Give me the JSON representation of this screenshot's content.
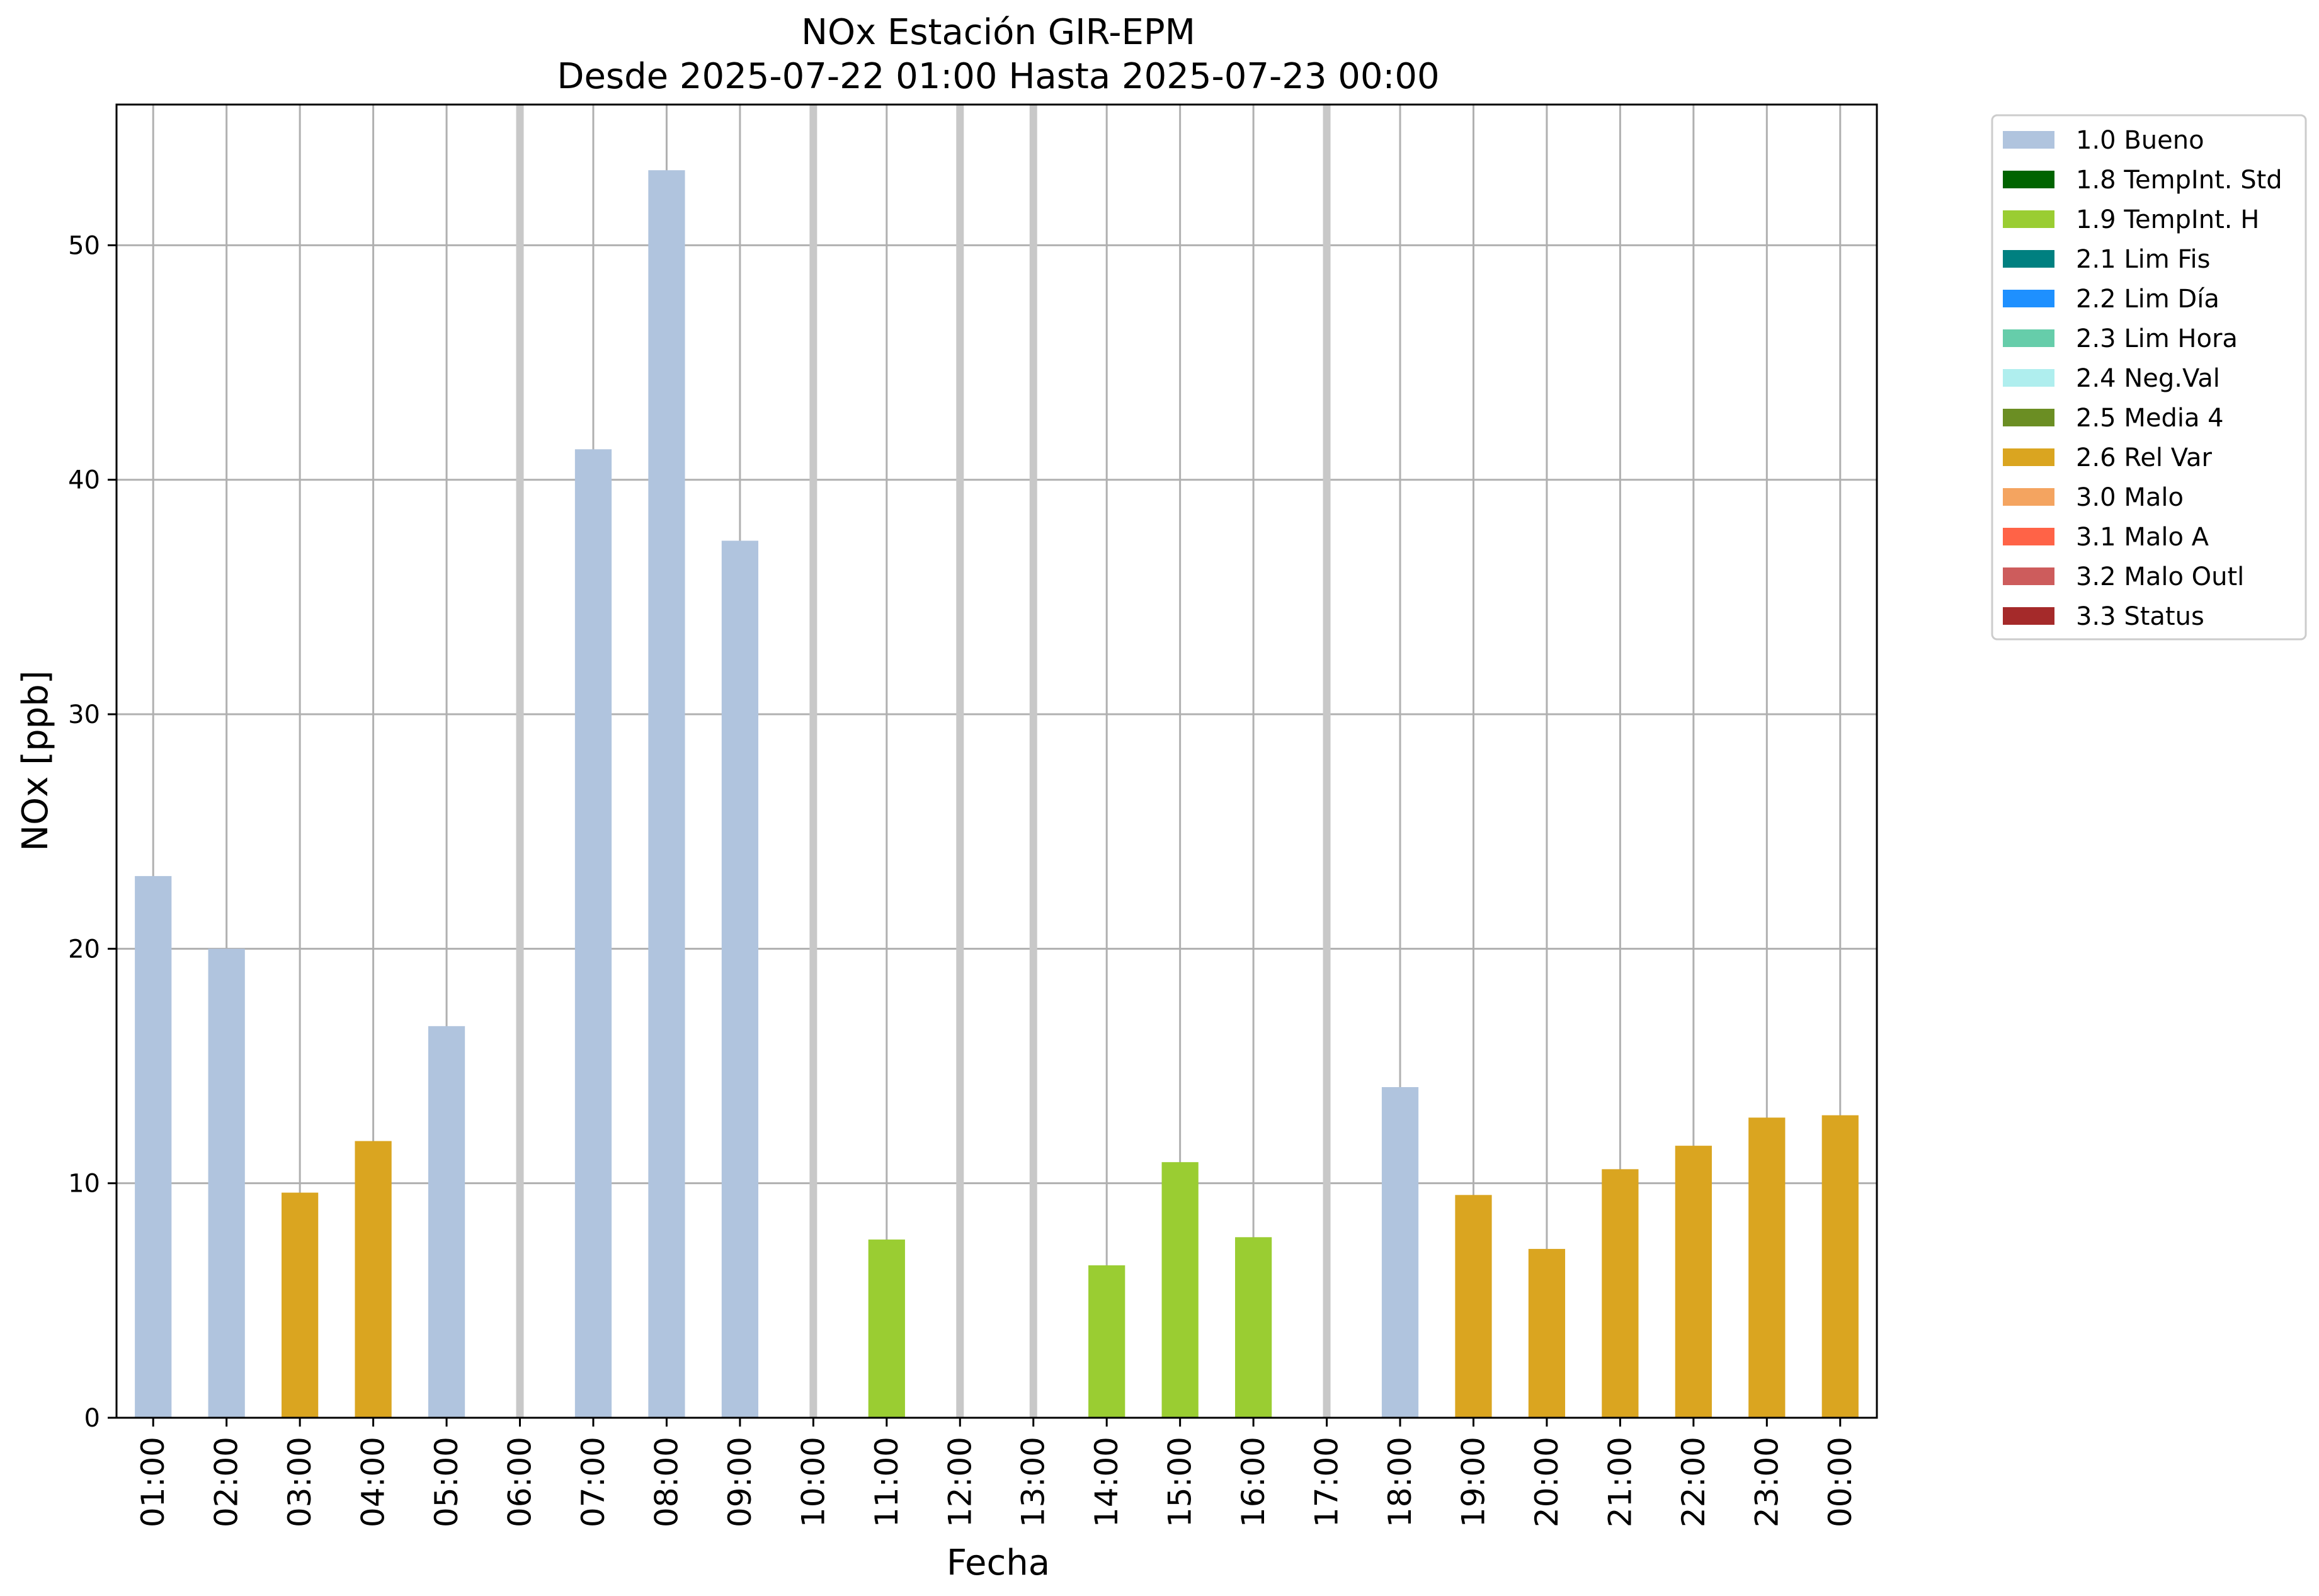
{
  "chart_data": {
    "type": "bar",
    "title": "NOx Estación GIR-EPM",
    "subtitle": "Desde 2025-07-22 01:00 Hasta 2025-07-23 00:00",
    "xlabel": "Fecha",
    "ylabel": "NOx [ppb]",
    "ylim": [
      0,
      56
    ],
    "yticks": [
      "0",
      "10",
      "20",
      "30",
      "40",
      "50"
    ],
    "grid": true,
    "legend_position": "outside-upper-right",
    "categories": [
      "01:00",
      "02:00",
      "03:00",
      "04:00",
      "05:00",
      "06:00",
      "07:00",
      "08:00",
      "09:00",
      "10:00",
      "11:00",
      "12:00",
      "13:00",
      "14:00",
      "15:00",
      "16:00",
      "17:00",
      "18:00",
      "19:00",
      "20:00",
      "21:00",
      "22:00",
      "23:00",
      "00:00"
    ],
    "values": [
      23.1,
      20.0,
      9.6,
      11.8,
      16.7,
      null,
      41.3,
      53.2,
      37.4,
      null,
      7.6,
      null,
      null,
      6.5,
      10.9,
      7.7,
      null,
      14.1,
      9.5,
      7.2,
      10.6,
      11.6,
      12.8,
      12.9
    ],
    "flags": [
      "1.0",
      "1.0",
      "2.6",
      "2.6",
      "1.0",
      null,
      "1.0",
      "1.0",
      "1.0",
      null,
      "1.9",
      null,
      null,
      "1.9",
      "1.9",
      "1.9",
      null,
      "1.0",
      "2.6",
      "2.6",
      "2.6",
      "2.6",
      "2.6",
      "2.6"
    ],
    "legend": [
      {
        "code": "1.0",
        "label": "1.0 Bueno",
        "color": "#b0c4de"
      },
      {
        "code": "1.8",
        "label": "1.8 TempInt. Std",
        "color": "#006400"
      },
      {
        "code": "1.9",
        "label": "1.9 TempInt. H",
        "color": "#9acd32"
      },
      {
        "code": "2.1",
        "label": "2.1 Lim Fis",
        "color": "#008080"
      },
      {
        "code": "2.2",
        "label": "2.2 Lim Día",
        "color": "#1e90ff"
      },
      {
        "code": "2.3",
        "label": "2.3 Lim Hora",
        "color": "#66cdaa"
      },
      {
        "code": "2.4",
        "label": "2.4 Neg.Val",
        "color": "#afeeee"
      },
      {
        "code": "2.5",
        "label": "2.5 Media 4",
        "color": "#6b8e23"
      },
      {
        "code": "2.6",
        "label": "2.6 Rel Var",
        "color": "#daa520"
      },
      {
        "code": "3.0",
        "label": "3.0 Malo",
        "color": "#f4a460"
      },
      {
        "code": "3.1",
        "label": "3.1 Malo A",
        "color": "#ff6347"
      },
      {
        "code": "3.2",
        "label": "3.2 Malo Outl",
        "color": "#cd5c5c"
      },
      {
        "code": "3.3",
        "label": "3.3 Status",
        "color": "#a52a2a"
      }
    ],
    "missing_marker_color": "#c8c8c8",
    "grid_color": "#b0b0b0"
  }
}
